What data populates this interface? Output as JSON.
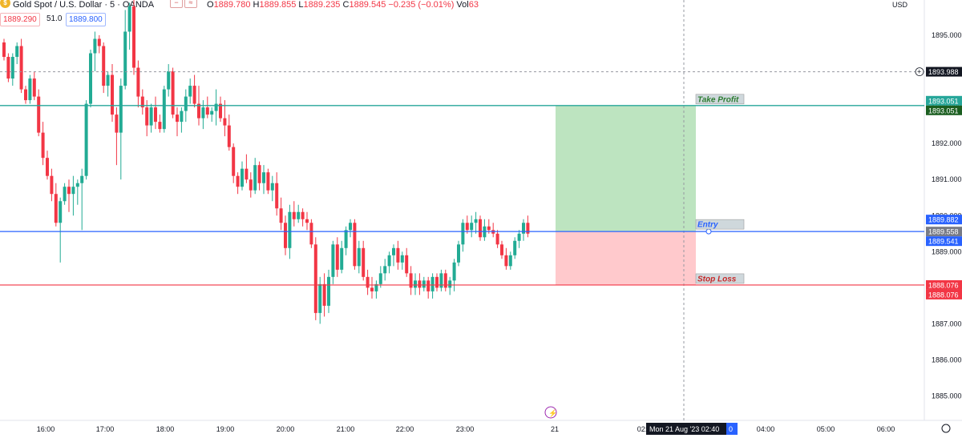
{
  "header": {
    "symbol": "Gold Spot / U.S. Dollar · 5 · OANDA",
    "logo_glyph": "$",
    "btn_minus": "−",
    "btn_wave": "≈",
    "ohlc": {
      "o": "1889.780",
      "h": "1889.855",
      "l": "1889.235",
      "c": "1889.545",
      "change": "−0.235 (−0.01%)",
      "vol": "63"
    },
    "bid": "1889.290",
    "spread": "51.0",
    "ask": "1889.800",
    "currency": "USD"
  },
  "colors": {
    "up": "#22ab94",
    "down": "#f23645",
    "take_profit": "#26a69a",
    "stop_loss": "#f23645",
    "entry": "#2962ff",
    "tp_zone": "#bde4c0",
    "sl_zone": "#ffc9cc"
  },
  "chart_data": {
    "type": "candlestick",
    "instrument": "Gold Spot / U.S. Dollar",
    "interval": "5",
    "ylim": [
      1884.5,
      1895.4
    ],
    "y_ticks": [
      "1885.000",
      "1886.000",
      "1887.000",
      "1888.000",
      "1889.000",
      "1890.000",
      "1891.000",
      "1892.000",
      "1893.000",
      "1894.000",
      "1895.000"
    ],
    "x_ticks": [
      "16:00",
      "17:00",
      "18:00",
      "19:00",
      "20:00",
      "21:00",
      "22:00",
      "23:00",
      "21",
      "02:",
      "04:00",
      "05:00",
      "06:00"
    ],
    "candles": [
      [
        1894.8,
        1894.9,
        1894.3,
        1894.4
      ],
      [
        1894.4,
        1894.5,
        1893.7,
        1893.8
      ],
      [
        1893.8,
        1894.5,
        1893.6,
        1894.4
      ],
      [
        1894.4,
        1894.8,
        1894.2,
        1894.7
      ],
      [
        1894.7,
        1894.9,
        1893.4,
        1893.5
      ],
      [
        1893.5,
        1893.6,
        1893.1,
        1893.2
      ],
      [
        1893.2,
        1893.9,
        1893.1,
        1893.8
      ],
      [
        1893.8,
        1894.0,
        1893.2,
        1893.3
      ],
      [
        1893.3,
        1893.5,
        1892.2,
        1892.3
      ],
      [
        1892.3,
        1892.6,
        1891.4,
        1891.6
      ],
      [
        1891.6,
        1891.8,
        1891.0,
        1891.1
      ],
      [
        1891.1,
        1891.3,
        1890.4,
        1890.6
      ],
      [
        1890.6,
        1890.9,
        1889.7,
        1889.8
      ],
      [
        1889.8,
        1890.5,
        1888.7,
        1890.4
      ],
      [
        1890.4,
        1890.9,
        1890.3,
        1890.8
      ],
      [
        1890.8,
        1891.0,
        1890.1,
        1890.6
      ],
      [
        1890.6,
        1891.1,
        1890.0,
        1890.8
      ],
      [
        1890.8,
        1891.0,
        1890.3,
        1890.9
      ],
      [
        1890.9,
        1891.3,
        1889.6,
        1891.1
      ],
      [
        1891.1,
        1893.2,
        1891.0,
        1893.1
      ],
      [
        1893.1,
        1894.6,
        1893.0,
        1894.5
      ],
      [
        1894.5,
        1895.1,
        1894.0,
        1894.9
      ],
      [
        1894.9,
        1895.0,
        1894.5,
        1894.7
      ],
      [
        1894.7,
        1894.8,
        1893.4,
        1893.6
      ],
      [
        1893.6,
        1894.0,
        1893.3,
        1893.9
      ],
      [
        1893.9,
        1894.2,
        1892.6,
        1892.8
      ],
      [
        1892.8,
        1893.0,
        1891.4,
        1892.3
      ],
      [
        1892.3,
        1893.8,
        1891.0,
        1893.6
      ],
      [
        1893.6,
        1895.7,
        1893.5,
        1895.1
      ],
      [
        1895.1,
        1895.9,
        1894.6,
        1895.8
      ],
      [
        1895.8,
        1896.0,
        1893.9,
        1894.1
      ],
      [
        1894.1,
        1894.3,
        1893.0,
        1893.3
      ],
      [
        1893.3,
        1893.5,
        1892.8,
        1893.0
      ],
      [
        1893.0,
        1893.2,
        1892.2,
        1892.5
      ],
      [
        1892.5,
        1893.1,
        1892.3,
        1893.0
      ],
      [
        1893.0,
        1893.3,
        1892.4,
        1892.6
      ],
      [
        1892.6,
        1892.8,
        1892.3,
        1892.4
      ],
      [
        1892.4,
        1893.6,
        1892.3,
        1893.5
      ],
      [
        1893.5,
        1894.2,
        1893.3,
        1894.0
      ],
      [
        1894.0,
        1894.1,
        1892.7,
        1892.8
      ],
      [
        1892.8,
        1893.0,
        1892.2,
        1892.6
      ],
      [
        1892.6,
        1893.0,
        1892.3,
        1892.9
      ],
      [
        1892.9,
        1893.5,
        1892.6,
        1893.3
      ],
      [
        1893.3,
        1893.8,
        1893.1,
        1893.6
      ],
      [
        1893.6,
        1893.9,
        1893.0,
        1893.1
      ],
      [
        1893.1,
        1893.6,
        1892.5,
        1892.7
      ],
      [
        1892.7,
        1893.2,
        1892.4,
        1893.0
      ],
      [
        1893.0,
        1893.3,
        1892.7,
        1892.8
      ],
      [
        1892.8,
        1893.0,
        1892.6,
        1892.9
      ],
      [
        1892.9,
        1893.5,
        1892.5,
        1893.1
      ],
      [
        1893.1,
        1893.3,
        1892.6,
        1892.7
      ],
      [
        1892.7,
        1893.2,
        1892.2,
        1892.5
      ],
      [
        1892.5,
        1892.8,
        1891.8,
        1891.9
      ],
      [
        1891.9,
        1892.0,
        1890.9,
        1891.1
      ],
      [
        1891.1,
        1891.2,
        1890.6,
        1890.8
      ],
      [
        1890.8,
        1891.5,
        1890.7,
        1891.3
      ],
      [
        1891.3,
        1891.7,
        1890.9,
        1891.0
      ],
      [
        1891.0,
        1891.2,
        1890.5,
        1890.7
      ],
      [
        1890.7,
        1891.6,
        1890.6,
        1891.4
      ],
      [
        1891.4,
        1891.5,
        1890.7,
        1890.9
      ],
      [
        1890.9,
        1891.4,
        1890.6,
        1891.2
      ],
      [
        1891.2,
        1891.3,
        1890.6,
        1890.7
      ],
      [
        1890.7,
        1891.1,
        1890.4,
        1890.9
      ],
      [
        1890.9,
        1891.2,
        1890.0,
        1890.2
      ],
      [
        1890.2,
        1890.5,
        1889.6,
        1889.8
      ],
      [
        1889.8,
        1890.0,
        1888.9,
        1889.1
      ],
      [
        1889.1,
        1890.3,
        1888.8,
        1890.1
      ],
      [
        1890.1,
        1890.4,
        1889.7,
        1889.9
      ],
      [
        1889.9,
        1890.3,
        1889.8,
        1890.1
      ],
      [
        1890.1,
        1890.2,
        1889.7,
        1889.9
      ],
      [
        1889.9,
        1890.1,
        1889.6,
        1889.8
      ],
      [
        1889.8,
        1889.9,
        1889.1,
        1889.2
      ],
      [
        1889.2,
        1889.4,
        1887.1,
        1887.3
      ],
      [
        1887.3,
        1888.3,
        1887.0,
        1888.1
      ],
      [
        1888.1,
        1888.4,
        1887.2,
        1887.5
      ],
      [
        1887.5,
        1888.5,
        1887.3,
        1888.3
      ],
      [
        1888.3,
        1889.3,
        1888.1,
        1889.2
      ],
      [
        1889.2,
        1889.4,
        1888.3,
        1888.5
      ],
      [
        1888.5,
        1889.3,
        1888.4,
        1889.1
      ],
      [
        1889.1,
        1889.7,
        1888.9,
        1889.6
      ],
      [
        1889.6,
        1889.9,
        1889.4,
        1889.8
      ],
      [
        1889.8,
        1889.9,
        1888.5,
        1888.6
      ],
      [
        1888.6,
        1889.3,
        1888.4,
        1889.1
      ],
      [
        1889.1,
        1889.3,
        1888.2,
        1888.3
      ],
      [
        1888.3,
        1888.5,
        1887.8,
        1888.0
      ],
      [
        1888.0,
        1888.3,
        1887.7,
        1887.9
      ],
      [
        1887.9,
        1888.2,
        1887.7,
        1888.1
      ],
      [
        1888.1,
        1888.6,
        1888.0,
        1888.4
      ],
      [
        1888.4,
        1888.8,
        1888.2,
        1888.6
      ],
      [
        1888.6,
        1889.0,
        1888.4,
        1888.9
      ],
      [
        1888.9,
        1889.2,
        1888.6,
        1889.1
      ],
      [
        1889.1,
        1889.3,
        1888.5,
        1888.7
      ],
      [
        1888.7,
        1889.0,
        1888.5,
        1888.9
      ],
      [
        1888.9,
        1889.1,
        1888.3,
        1888.4
      ],
      [
        1888.4,
        1888.6,
        1887.8,
        1888.0
      ],
      [
        1888.0,
        1888.4,
        1887.8,
        1888.2
      ],
      [
        1888.2,
        1888.4,
        1887.8,
        1888.0
      ],
      [
        1888.0,
        1888.3,
        1887.9,
        1888.2
      ],
      [
        1888.2,
        1888.3,
        1887.7,
        1887.9
      ],
      [
        1887.9,
        1888.4,
        1887.7,
        1888.3
      ],
      [
        1888.3,
        1888.4,
        1887.9,
        1888.0
      ],
      [
        1888.0,
        1888.5,
        1887.9,
        1888.4
      ],
      [
        1888.4,
        1888.5,
        1887.9,
        1888.0
      ],
      [
        1888.0,
        1888.3,
        1887.8,
        1888.2
      ],
      [
        1888.2,
        1888.8,
        1887.9,
        1888.7
      ],
      [
        1888.7,
        1889.3,
        1888.6,
        1889.2
      ],
      [
        1889.2,
        1889.9,
        1889.0,
        1889.8
      ],
      [
        1889.8,
        1890.0,
        1889.5,
        1889.6
      ],
      [
        1889.6,
        1890.0,
        1889.4,
        1889.8
      ],
      [
        1889.8,
        1890.1,
        1889.5,
        1889.9
      ],
      [
        1889.9,
        1890.0,
        1889.3,
        1889.4
      ],
      [
        1889.4,
        1889.9,
        1889.3,
        1889.7
      ],
      [
        1889.7,
        1889.9,
        1889.5,
        1889.6
      ],
      [
        1889.6,
        1889.8,
        1889.4,
        1889.5
      ],
      [
        1889.5,
        1889.6,
        1889.1,
        1889.2
      ],
      [
        1889.2,
        1889.3,
        1888.8,
        1888.9
      ],
      [
        1888.9,
        1889.1,
        1888.5,
        1888.6
      ],
      [
        1888.6,
        1889.0,
        1888.5,
        1888.9
      ],
      [
        1888.9,
        1889.4,
        1888.8,
        1889.3
      ],
      [
        1889.3,
        1889.6,
        1889.1,
        1889.5
      ],
      [
        1889.5,
        1889.9,
        1889.3,
        1889.8
      ],
      [
        1889.8,
        1890.0,
        1889.4,
        1889.5
      ]
    ],
    "position": {
      "entry": 1889.558,
      "take_profit": 1893.051,
      "stop_loss": 1888.076,
      "labels": {
        "take_profit": "Take Profit",
        "entry": "Entry",
        "stop_loss": "Stop Loss"
      }
    },
    "price_tags": {
      "crosshair": "1893.988",
      "tp_upper": "1893.051",
      "tp_lower": "1893.051",
      "ask": "1889.882",
      "last": "1889.558",
      "bid": "1889.541",
      "sl_upper": "1888.076",
      "sl_lower": "1888.076"
    },
    "crosshair_time": "Mon 21 Aug '23   02:40",
    "time_badge_tail": "0"
  }
}
